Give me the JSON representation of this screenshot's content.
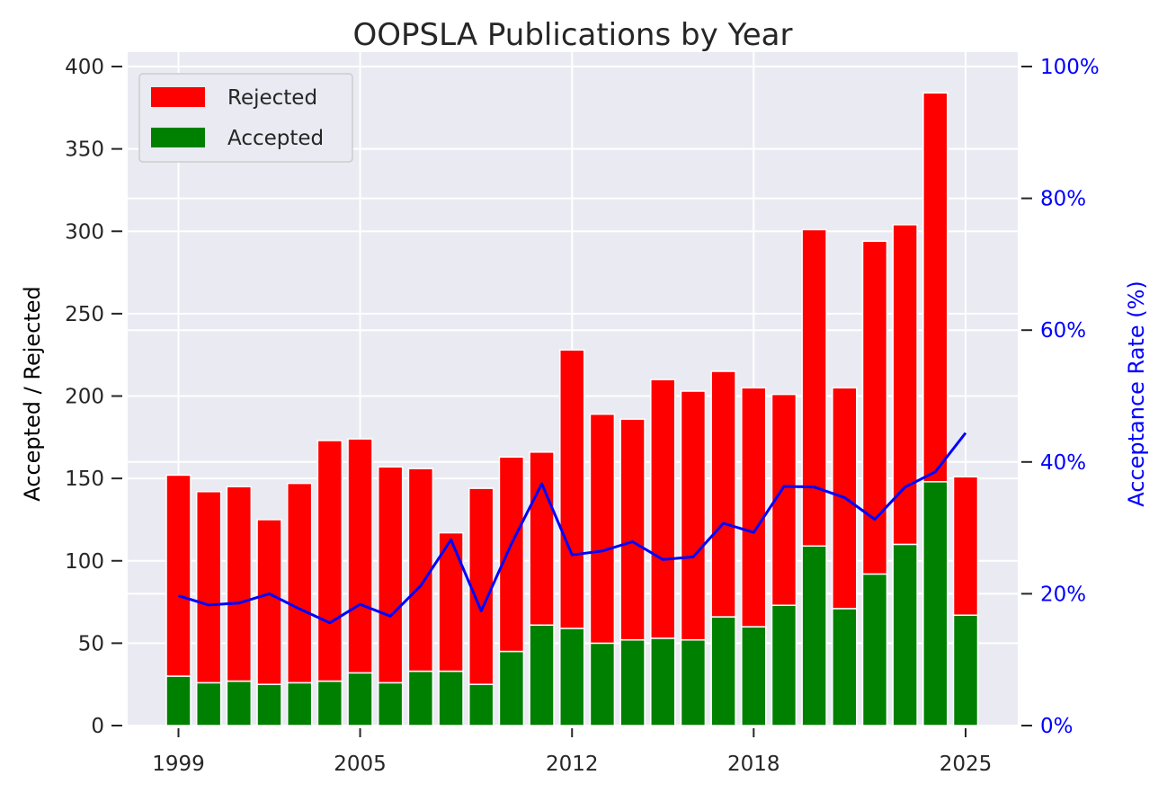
{
  "chart_data": {
    "type": "bar",
    "title": "OOPSLA Publications by Year",
    "ylabel": "Accepted / Rejected",
    "ylabel_right": "Acceptance Rate (%)",
    "ylim": [
      0,
      400
    ],
    "ylim_right": [
      0,
      100
    ],
    "yticks": [
      "0",
      "50",
      "100",
      "150",
      "200",
      "250",
      "300",
      "350",
      "400"
    ],
    "yticks_right": [
      "0%",
      "20%",
      "40%",
      "60%",
      "80%",
      "100%"
    ],
    "xtick_labels": [
      "1999",
      "2005",
      "2012",
      "2018",
      "2025"
    ],
    "grid": true,
    "legend_position": "top-left",
    "stacked": true,
    "years": [
      1999,
      2000,
      2001,
      2002,
      2003,
      2004,
      2005,
      2006,
      2007,
      2008,
      2009,
      2010,
      2011,
      2012,
      2013,
      2014,
      2015,
      2016,
      2017,
      2018,
      2019,
      2020,
      2021,
      2022,
      2023,
      2024,
      2025
    ],
    "series": [
      {
        "name": "Accepted",
        "color": "#008000",
        "values": [
          30,
          26,
          27,
          25,
          26,
          27,
          32,
          26,
          33,
          33,
          25,
          45,
          61,
          59,
          50,
          52,
          53,
          52,
          66,
          60,
          73,
          109,
          71,
          92,
          110,
          148,
          67
        ]
      },
      {
        "name": "Rejected",
        "color": "#ff0000",
        "values": [
          122,
          116,
          118,
          100,
          121,
          146,
          142,
          131,
          123,
          84,
          119,
          118,
          105,
          169,
          139,
          134,
          157,
          151,
          149,
          145,
          128,
          192,
          134,
          202,
          194,
          236,
          84
        ]
      },
      {
        "name": "Acceptance Rate",
        "axis": "right",
        "type": "line",
        "color": "#0000ff",
        "values": [
          19.7,
          18.3,
          18.6,
          20.0,
          17.7,
          15.6,
          18.4,
          16.6,
          21.2,
          28.2,
          17.4,
          27.6,
          36.7,
          25.9,
          26.5,
          27.9,
          25.2,
          25.6,
          30.7,
          29.3,
          36.3,
          36.2,
          34.6,
          31.3,
          36.2,
          38.5,
          44.4
        ]
      }
    ]
  },
  "colors": {
    "background": "#eaeaf2",
    "grid": "#ffffff",
    "accepted": "#008000",
    "rejected": "#ff0000",
    "rate": "#0000ff"
  }
}
